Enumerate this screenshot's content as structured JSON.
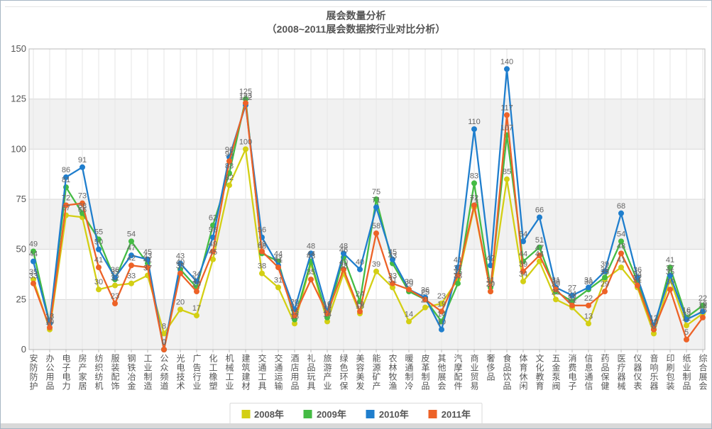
{
  "chart_data": {
    "type": "line",
    "title": "展会数量分析",
    "subtitle": "（2008~2011展会数据按行业对比分析）",
    "ylim": [
      0,
      150
    ],
    "yticks": [
      0,
      25,
      50,
      75,
      100,
      125,
      150
    ],
    "grid": true,
    "legend_position": "bottom",
    "show_data_labels": true,
    "categories": [
      "安防防护",
      "办公用品",
      "电子电力",
      "房产家居",
      "纺织纺机",
      "服装配饰",
      "钢铁冶金",
      "工业制造",
      "公众频道",
      "光电技术",
      "广告行业",
      "化工橡塑",
      "机械工业",
      "建筑建材",
      "交通工具",
      "交通运输",
      "酒店用品",
      "礼品玩具",
      "旅游产业",
      "绿色环保",
      "美容美发",
      "能源矿产",
      "农林牧渔",
      "暖通制冷",
      "皮革制品",
      "其他展会",
      "汽摩配件",
      "商业贸易",
      "奢侈品",
      "食品饮品",
      "体育休闲",
      "文化教育",
      "五金泵阀",
      "消费电子",
      "信息通信",
      "药品保健",
      "医疗器械",
      "仪器仪表",
      "音响乐器",
      "印刷包装",
      "纸业制品",
      "综合展会"
    ],
    "series": [
      {
        "name": "2008年",
        "color": "#d3cf14",
        "values": [
          35,
          10,
          67,
          66,
          30,
          32,
          33,
          37,
          8,
          20,
          17,
          45,
          82,
          100,
          38,
          31,
          13,
          43,
          14,
          38,
          18,
          39,
          31,
          14,
          21,
          23,
          35,
          71,
          29,
          85,
          34,
          44,
          25,
          21,
          13,
          35,
          41,
          31,
          8,
          35,
          12,
          18
        ]
      },
      {
        "name": "2009年",
        "color": "#44bb44",
        "values": [
          49,
          13,
          81,
          68,
          55,
          35,
          54,
          43,
          0,
          40,
          31,
          62,
          88,
          125,
          48,
          44,
          15,
          44,
          16,
          46,
          24,
          75,
          43,
          29,
          25,
          14,
          33,
          83,
          31,
          107,
          44,
          51,
          29,
          24,
          30,
          36,
          54,
          34,
          10,
          41,
          16,
          22
        ]
      },
      {
        "name": "2010年",
        "color": "#1f7ecd",
        "values": [
          44,
          13,
          86,
          91,
          50,
          36,
          47,
          45,
          0,
          43,
          34,
          56,
          96,
          122,
          56,
          42,
          20,
          48,
          19,
          48,
          40,
          71,
          45,
          30,
          26,
          10,
          41,
          110,
          42,
          140,
          54,
          66,
          31,
          27,
          31,
          39,
          68,
          36,
          12,
          37,
          15,
          19
        ]
      },
      {
        "name": "2011年",
        "color": "#ed6227",
        "values": [
          33,
          11,
          72,
          73,
          41,
          23,
          42,
          41,
          0,
          38,
          29,
          49,
          94,
          123,
          49,
          41,
          17,
          35,
          18,
          40,
          19,
          58,
          33,
          30,
          25,
          19,
          37,
          72,
          29,
          117,
          39,
          47,
          30,
          22,
          22,
          29,
          48,
          32,
          10,
          30,
          5,
          16
        ]
      }
    ]
  },
  "theme": {
    "band_color": "#f1f1f1",
    "hgrid_color": "#d9d9d9",
    "vgrid_color": "#e6e6e6",
    "plot_border_color": "#b8b8b8",
    "axis_text_color": "#555555",
    "data_label_color": "#666666",
    "title_color": "#555555"
  }
}
